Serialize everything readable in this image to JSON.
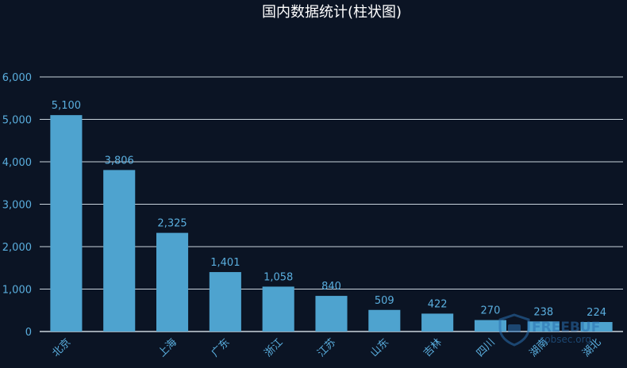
{
  "chart_data": {
    "type": "bar",
    "title": "国内数据统计(柱状图)",
    "categories": [
      "北京",
      "",
      "上海",
      "广东",
      "浙江",
      "江苏",
      "山东",
      "吉林",
      "四川",
      "湖南",
      "湖北"
    ],
    "values": [
      5100,
      3806,
      2325,
      1401,
      1058,
      840,
      509,
      422,
      270,
      238,
      224
    ],
    "value_labels": [
      "5,100",
      "3,806",
      "2,325",
      "1,401",
      "1,058",
      "840",
      "509",
      "422",
      "270",
      "238",
      "224"
    ],
    "yticks": [
      0,
      1000,
      2000,
      3000,
      4000,
      5000,
      6000
    ],
    "ytick_labels": [
      "0",
      "1,000",
      "2,000",
      "3,000",
      "4,000",
      "5,000",
      "6,000"
    ],
    "ylim": [
      0,
      6000
    ],
    "grid": true,
    "xlabel": "",
    "ylabel": ""
  },
  "colors": {
    "background": "#0b1424",
    "bar": "#4ea3cf",
    "grid": "#c9d3dc",
    "title": "#ffffff",
    "tick_label": "#5aaede",
    "data_label": "#5aaede"
  },
  "watermark": {
    "text": "FREEBUF",
    "subtext": "sobsec.org",
    "icon": "shield-logo-icon"
  }
}
